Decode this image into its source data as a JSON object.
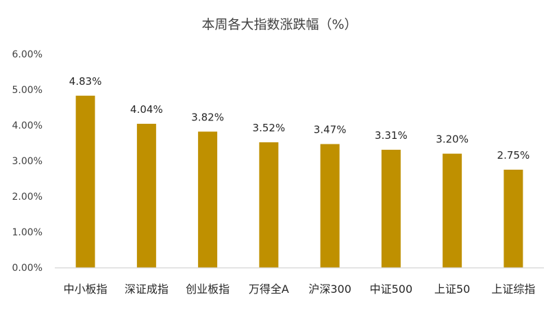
{
  "chart_data": {
    "type": "bar",
    "title": "本周各大指数涨跌幅（%）",
    "xlabel": "",
    "ylabel": "",
    "categories": [
      "中小板指",
      "深证成指",
      "创业板指",
      "万得全A",
      "沪深300",
      "中证500",
      "上证50",
      "上证综指"
    ],
    "values": [
      4.83,
      4.04,
      3.82,
      3.52,
      3.47,
      3.31,
      3.2,
      2.75
    ],
    "data_labels": [
      "4.83%",
      "4.04%",
      "3.82%",
      "3.52%",
      "3.47%",
      "3.31%",
      "3.20%",
      "2.75%"
    ],
    "ylim": [
      0,
      6
    ],
    "yticks": [
      0,
      1,
      2,
      3,
      4,
      5,
      6
    ],
    "ytick_labels": [
      "0.00%",
      "1.00%",
      "2.00%",
      "3.00%",
      "4.00%",
      "5.00%",
      "6.00%"
    ],
    "grid": false,
    "legend": "none",
    "colors": {
      "bar": "#BF9000",
      "axis": "#D9D9D9",
      "text": "#404040"
    }
  }
}
